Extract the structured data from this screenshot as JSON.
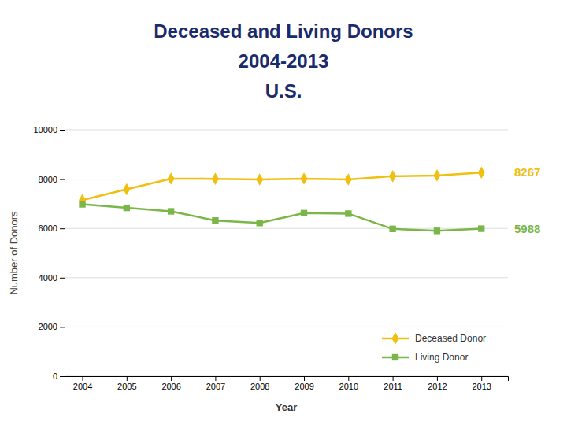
{
  "chart_data": {
    "type": "line",
    "title": [
      "Deceased and Living Donors",
      "2004-2013",
      "U.S."
    ],
    "x": [
      2004,
      2005,
      2006,
      2007,
      2008,
      2009,
      2010,
      2011,
      2012,
      2013
    ],
    "series": [
      {
        "name": "Deceased Donor",
        "color": "#f0c010",
        "marker": "diamond",
        "line_style": "solid",
        "values": [
          7150,
          7590,
          8020,
          8015,
          7985,
          8020,
          7990,
          8120,
          8150,
          8267
        ]
      },
      {
        "name": "Living Donor",
        "color": "#7ab648",
        "marker": "square",
        "line_style": "solid",
        "values": [
          6980,
          6834,
          6693,
          6320,
          6220,
          6620,
          6600,
          5980,
          5900,
          5988
        ]
      }
    ],
    "xlabel": "Year",
    "ylabel": "Number of Donors",
    "xlim": [
      2003.6,
      2013.6
    ],
    "xticks": [
      2004,
      2005,
      2006,
      2007,
      2008,
      2009,
      2010,
      2011,
      2012,
      2013
    ],
    "ylim": [
      0,
      10000
    ],
    "yticks": [
      0,
      2000,
      4000,
      6000,
      8000,
      10000
    ],
    "grid": true,
    "legend": "lower right",
    "annotations": [
      {
        "text": "8267",
        "color": "#f0c010"
      },
      {
        "text": "5988",
        "color": "#7ab648"
      }
    ]
  }
}
